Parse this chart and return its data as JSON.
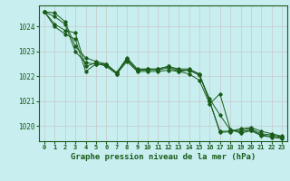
{
  "title": "Graphe pression niveau de la mer (hPa)",
  "background_color": "#c8eef0",
  "grid_color": "#c8c8c8",
  "line_color": "#1a5c1a",
  "xlim": [
    -0.5,
    23.5
  ],
  "ylim": [
    1019.4,
    1024.85
  ],
  "yticks": [
    1020,
    1021,
    1022,
    1023,
    1024
  ],
  "xticks": [
    0,
    1,
    2,
    3,
    4,
    5,
    6,
    7,
    8,
    9,
    10,
    11,
    12,
    13,
    14,
    15,
    16,
    17,
    18,
    19,
    20,
    21,
    22,
    23
  ],
  "series": [
    [
      1024.6,
      1024.55,
      1024.2,
      1023.2,
      1022.75,
      1022.6,
      1022.5,
      1022.15,
      1022.75,
      1022.3,
      1022.3,
      1022.3,
      1022.4,
      1022.3,
      1022.3,
      1022.1,
      1021.0,
      1019.8,
      1019.8,
      1019.9,
      1019.95,
      1019.8,
      1019.7,
      1019.6
    ],
    [
      1024.6,
      1024.4,
      1024.1,
      1023.0,
      1022.55,
      1022.5,
      1022.45,
      1022.15,
      1022.65,
      1022.25,
      1022.25,
      1022.3,
      1022.4,
      1022.25,
      1022.25,
      1022.1,
      1021.0,
      1019.75,
      1019.78,
      1019.85,
      1019.9,
      1019.7,
      1019.65,
      1019.58
    ],
    [
      1024.6,
      1024.1,
      1023.85,
      1023.75,
      1022.4,
      1022.55,
      1022.4,
      1022.1,
      1022.7,
      1022.25,
      1022.3,
      1022.25,
      1022.35,
      1022.2,
      1022.25,
      1022.05,
      1021.1,
      1020.45,
      1019.85,
      1019.78,
      1019.85,
      1019.65,
      1019.6,
      1019.55
    ],
    [
      1024.6,
      1024.0,
      1023.7,
      1023.5,
      1022.2,
      1022.5,
      1022.5,
      1022.1,
      1022.6,
      1022.2,
      1022.2,
      1022.2,
      1022.25,
      1022.2,
      1022.1,
      1021.85,
      1020.9,
      1021.3,
      1019.88,
      1019.72,
      1019.82,
      1019.62,
      1019.56,
      1019.5
    ]
  ]
}
